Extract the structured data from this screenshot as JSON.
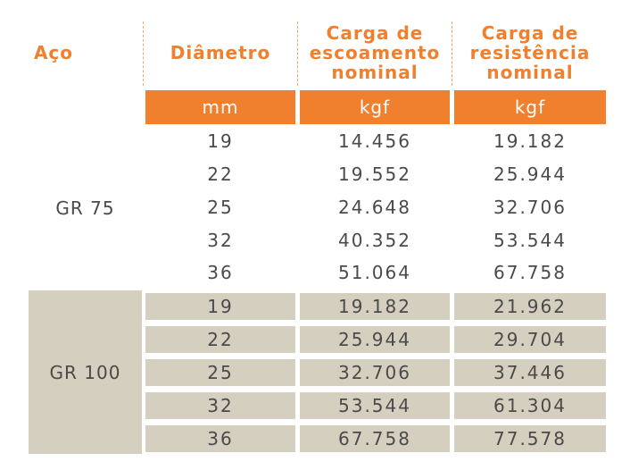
{
  "header": {
    "aco": "Aço",
    "diametro": "Diâmetro",
    "escoamento": [
      "Carga de",
      "escoamento",
      "nominal"
    ],
    "resistencia": [
      "Carga de",
      "resistência",
      "nominal"
    ]
  },
  "units": {
    "diametro": "mm",
    "escoamento": "kgf",
    "resistencia": "kgf"
  },
  "groups": [
    {
      "name": "GR 75",
      "rows": [
        {
          "d": "19",
          "esc": "14.456",
          "res": "19.182"
        },
        {
          "d": "22",
          "esc": "19.552",
          "res": "25.944"
        },
        {
          "d": "25",
          "esc": "24.648",
          "res": "32.706"
        },
        {
          "d": "32",
          "esc": "40.352",
          "res": "53.544"
        },
        {
          "d": "36",
          "esc": "51.064",
          "res": "67.758"
        }
      ]
    },
    {
      "name": "GR 100",
      "rows": [
        {
          "d": "19",
          "esc": "19.182",
          "res": "21.962"
        },
        {
          "d": "22",
          "esc": "25.944",
          "res": "29.704"
        },
        {
          "d": "25",
          "esc": "32.706",
          "res": "37.446"
        },
        {
          "d": "32",
          "esc": "53.544",
          "res": "61.304"
        },
        {
          "d": "36",
          "esc": "67.758",
          "res": "77.578"
        }
      ]
    }
  ],
  "colors": {
    "accent": "#f07f2e",
    "shade": "#d5cfc0",
    "text": "#4a4a4a"
  }
}
